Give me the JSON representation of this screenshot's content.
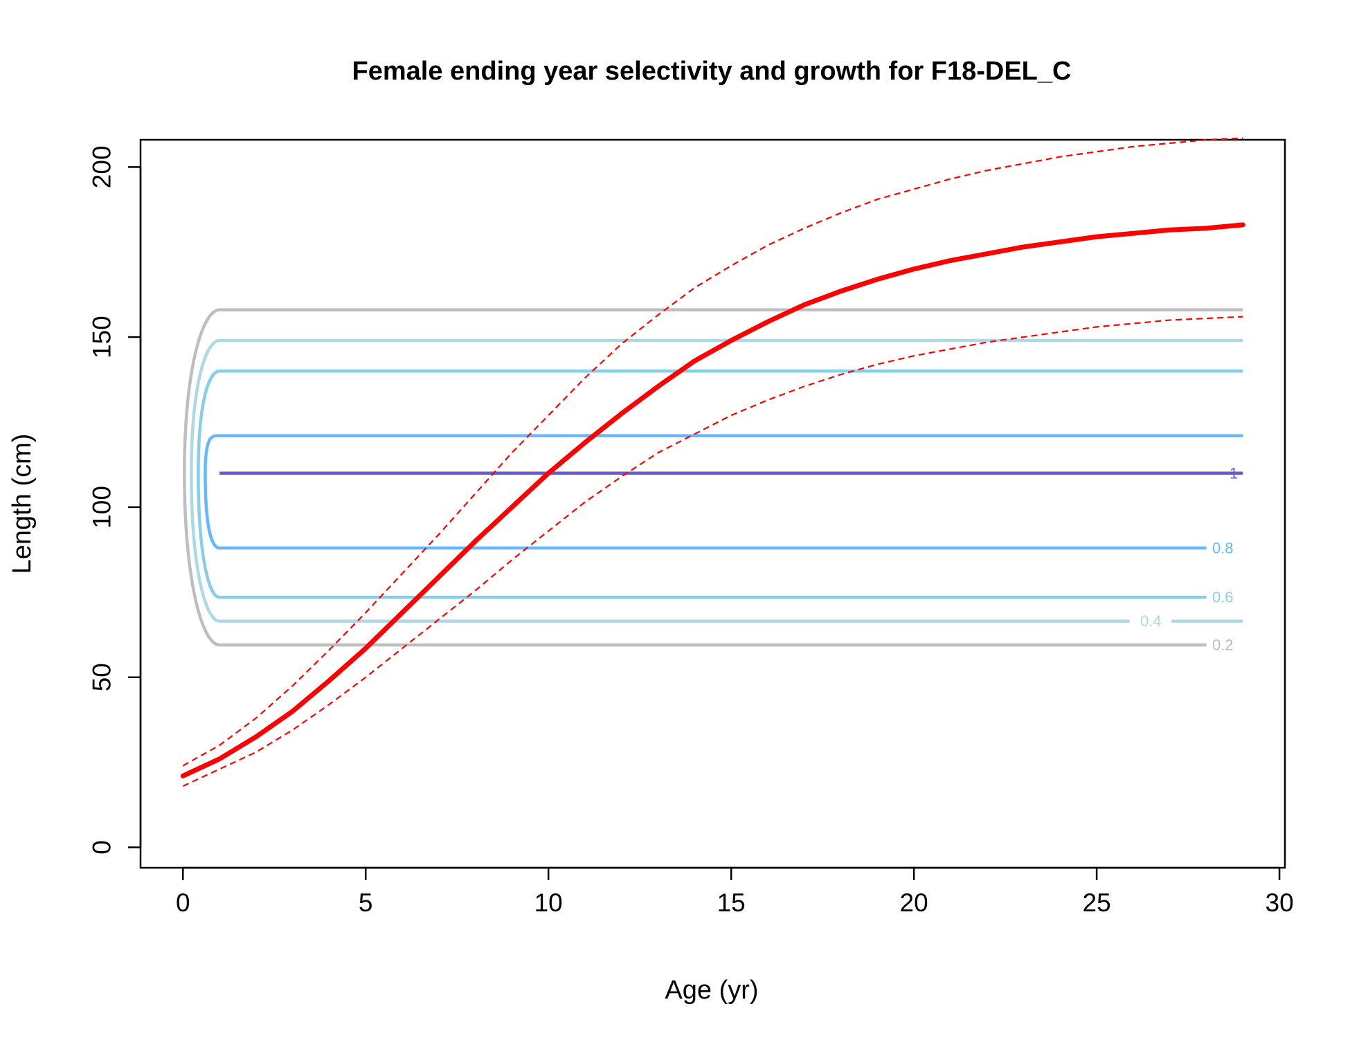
{
  "chart_data": {
    "type": "line",
    "title": "Female ending year selectivity and growth for F18-DEL_C",
    "xlabel": "Age (yr)",
    "ylabel": "Length (cm)",
    "xlim": [
      -1.16,
      30.15
    ],
    "ylim": [
      -6,
      208
    ],
    "x_ticks": [
      0,
      5,
      10,
      15,
      20,
      25,
      30
    ],
    "y_ticks": [
      0,
      50,
      100,
      150,
      200
    ],
    "grid": false,
    "legend": "none",
    "growth": {
      "color": "#ff0000",
      "age": [
        0,
        1,
        2,
        3,
        4,
        5,
        6,
        7,
        8,
        9,
        10,
        11,
        12,
        13,
        14,
        15,
        16,
        17,
        18,
        19,
        20,
        21,
        22,
        23,
        24,
        25,
        26,
        27,
        28,
        29
      ],
      "mean": [
        21,
        26,
        32.5,
        40,
        49,
        58.5,
        69,
        79.5,
        90,
        100,
        110,
        119,
        127.5,
        135.5,
        143,
        149,
        154.5,
        159.5,
        163.5,
        167,
        170,
        172.5,
        174.5,
        176.5,
        178,
        179.5,
        180.5,
        181.5,
        182,
        183
      ],
      "upper": [
        24,
        30,
        38,
        47.5,
        58,
        69,
        80.5,
        92,
        104,
        116,
        127,
        138,
        148,
        156.5,
        164.5,
        171,
        177,
        182,
        186.5,
        190.5,
        193.5,
        196.5,
        199,
        201,
        203,
        204.5,
        206,
        207,
        208,
        208.5
      ],
      "lower": [
        18,
        23,
        28,
        34.5,
        42,
        50,
        58.5,
        67,
        75.5,
        84.5,
        93,
        101.5,
        109,
        116,
        121.5,
        127,
        131.5,
        135.5,
        139,
        142,
        144.5,
        146.5,
        148.5,
        150,
        151.5,
        153,
        154,
        155,
        155.5,
        156
      ]
    },
    "contours": [
      {
        "level": "0.2",
        "color": "#bebebe",
        "top": 158,
        "bottom": 59.5,
        "label": "0.2",
        "label_side": "bottom"
      },
      {
        "level": "0.4",
        "color": "#add8e6",
        "top": 149,
        "bottom": 66.5,
        "label": "0.4",
        "label_side": "bottom"
      },
      {
        "level": "0.6",
        "color": "#87ceeb",
        "top": 140,
        "bottom": 73.5,
        "label": "0.6",
        "label_side": "bottom"
      },
      {
        "level": "0.8",
        "color": "#63b8ff",
        "top": 121,
        "bottom": 88,
        "label": "0.8",
        "label_side": "bottom"
      },
      {
        "level": "1",
        "color": "#6a5acd",
        "top": 110,
        "bottom": 110,
        "label": "1",
        "label_side": "center"
      }
    ],
    "contour_x_start": 1,
    "contour_x_end": 29
  }
}
